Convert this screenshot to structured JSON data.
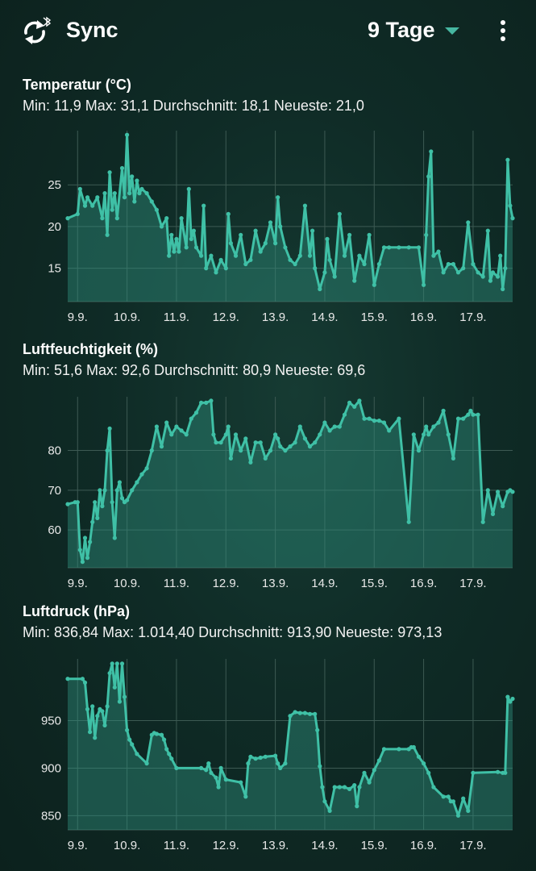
{
  "appbar": {
    "title": "Sync",
    "range": "9 Tage",
    "icons": {
      "sync": "sync-bluetooth-icon",
      "menu": "more-vert-icon",
      "dropdown": "caret-down-icon"
    }
  },
  "colors": {
    "line": "#3fc0a6",
    "fill": "#2f8f7c",
    "grid": "#3d5a53",
    "background": "#0f2b26"
  },
  "sections": [
    {
      "title": "Temperatur (°C)",
      "stats": "Min: 11,9 Max: 31,1 Durchschnitt: 18,1 Neueste: 21,0"
    },
    {
      "title": "Luftfeuchtigkeit (%)",
      "stats": "Min: 51,6 Max: 92,6 Durchschnitt: 80,9 Neueste: 69,6"
    },
    {
      "title": "Luftdruck (hPa)",
      "stats": "Min: 836,84 Max: 1.014,40 Durchschnitt: 913,90 Neueste: 973,13"
    }
  ],
  "chart_data": [
    {
      "type": "area",
      "title": "Temperatur (°C)",
      "x_categories": [
        "9.9.",
        "10.9.",
        "11.9.",
        "12.9.",
        "13.9.",
        "14.9.",
        "15.9.",
        "16.9.",
        "17.9."
      ],
      "x_range": [
        8.8,
        17.8
      ],
      "ylim": [
        11,
        31.5
      ],
      "yticks": [
        15,
        20,
        25
      ],
      "grid": true,
      "x": [
        8.8,
        9.0,
        9.05,
        9.15,
        9.2,
        9.3,
        9.4,
        9.5,
        9.55,
        9.6,
        9.65,
        9.7,
        9.75,
        9.8,
        9.9,
        9.95,
        10.0,
        10.05,
        10.1,
        10.15,
        10.2,
        10.25,
        10.3,
        10.4,
        10.5,
        10.6,
        10.7,
        10.8,
        10.85,
        10.9,
        10.95,
        11.0,
        11.05,
        11.1,
        11.2,
        11.25,
        11.3,
        11.35,
        11.4,
        11.5,
        11.55,
        11.6,
        11.7,
        11.8,
        11.9,
        12.0,
        12.05,
        12.1,
        12.2,
        12.3,
        12.4,
        12.5,
        12.6,
        12.7,
        12.8,
        12.9,
        13.0,
        13.05,
        13.1,
        13.2,
        13.3,
        13.4,
        13.5,
        13.6,
        13.7,
        13.75,
        13.8,
        13.9,
        14.0,
        14.05,
        14.1,
        14.2,
        14.3,
        14.4,
        14.5,
        14.6,
        14.7,
        14.8,
        14.9,
        15.0,
        15.1,
        15.2,
        15.3,
        15.5,
        15.7,
        15.9,
        16.0,
        16.05,
        16.1,
        16.15,
        16.2,
        16.3,
        16.4,
        16.5,
        16.6,
        16.7,
        16.8,
        16.9,
        17.0,
        17.1,
        17.2,
        17.3,
        17.35,
        17.4,
        17.5,
        17.55,
        17.6,
        17.65,
        17.7,
        17.75,
        17.8
      ],
      "values": [
        21.0,
        21.5,
        24.5,
        22.5,
        23.5,
        22.5,
        23.5,
        21.0,
        24.0,
        19.0,
        26.5,
        22.0,
        24.0,
        21.0,
        27.0,
        23.5,
        31.0,
        24.0,
        26.0,
        23.0,
        25.5,
        24.0,
        24.5,
        24.0,
        23.0,
        22.0,
        20.0,
        21.0,
        16.5,
        19.0,
        17.0,
        18.5,
        17.0,
        21.0,
        17.5,
        24.5,
        18.5,
        19.5,
        17.5,
        16.5,
        22.5,
        15.0,
        16.5,
        14.5,
        16.0,
        15.0,
        21.5,
        18.0,
        16.5,
        19.0,
        15.5,
        16.0,
        19.5,
        17.0,
        18.0,
        20.5,
        18.0,
        23.5,
        20.0,
        17.5,
        16.0,
        15.5,
        16.5,
        22.5,
        16.5,
        19.5,
        15.0,
        12.5,
        14.5,
        18.5,
        16.0,
        14.0,
        21.5,
        16.5,
        19.0,
        13.5,
        16.5,
        15.5,
        19.0,
        13.0,
        15.5,
        17.5,
        17.5,
        17.5,
        17.5,
        17.5,
        13.0,
        19.0,
        26.0,
        29.0,
        16.5,
        17.0,
        14.5,
        15.5,
        15.5,
        14.5,
        15.0,
        20.5,
        15.5,
        14.5,
        14.0,
        19.5,
        13.5,
        14.5,
        14.0,
        16.5,
        12.5,
        15.0,
        28.0,
        22.5,
        21.0
      ]
    },
    {
      "type": "area",
      "title": "Luftfeuchtigkeit (%)",
      "x_categories": [
        "9.9.",
        "10.9.",
        "11.9.",
        "12.9.",
        "13.9.",
        "14.9.",
        "15.9.",
        "16.9.",
        "17.9."
      ],
      "x_range": [
        8.8,
        17.8
      ],
      "ylim": [
        50.5,
        93.5
      ],
      "yticks": [
        60,
        70,
        80
      ],
      "grid": true,
      "x": [
        8.8,
        8.95,
        9.0,
        9.05,
        9.1,
        9.15,
        9.2,
        9.25,
        9.3,
        9.35,
        9.4,
        9.45,
        9.5,
        9.55,
        9.6,
        9.65,
        9.7,
        9.75,
        9.8,
        9.85,
        9.9,
        9.95,
        10.0,
        10.1,
        10.2,
        10.3,
        10.4,
        10.5,
        10.6,
        10.7,
        10.8,
        10.9,
        11.0,
        11.1,
        11.2,
        11.3,
        11.4,
        11.5,
        11.6,
        11.7,
        11.75,
        11.8,
        11.9,
        12.0,
        12.05,
        12.1,
        12.2,
        12.3,
        12.4,
        12.5,
        12.6,
        12.7,
        12.8,
        12.9,
        13.0,
        13.05,
        13.1,
        13.2,
        13.3,
        13.4,
        13.5,
        13.6,
        13.7,
        13.8,
        13.9,
        14.0,
        14.1,
        14.2,
        14.3,
        14.4,
        14.5,
        14.6,
        14.7,
        14.8,
        14.9,
        15.0,
        15.1,
        15.2,
        15.3,
        15.5,
        15.7,
        15.8,
        15.9,
        16.0,
        16.05,
        16.1,
        16.2,
        16.3,
        16.4,
        16.5,
        16.6,
        16.7,
        16.8,
        16.9,
        16.95,
        17.0,
        17.1,
        17.2,
        17.3,
        17.4,
        17.5,
        17.6,
        17.7,
        17.75,
        17.8
      ],
      "values": [
        66.5,
        67.0,
        67.0,
        55.0,
        52.0,
        58.0,
        53.0,
        57.0,
        62.0,
        67.0,
        63.0,
        70.0,
        66.0,
        70.0,
        80.0,
        85.5,
        67.0,
        58.0,
        70.0,
        72.0,
        68.0,
        67.0,
        67.5,
        70.0,
        72.0,
        74.0,
        75.5,
        80.0,
        86.0,
        81.0,
        87.0,
        84.0,
        86.0,
        85.0,
        84.0,
        88.0,
        89.5,
        92.0,
        92.0,
        92.5,
        84.0,
        82.0,
        82.0,
        84.0,
        86.0,
        78.0,
        84.0,
        80.0,
        83.0,
        77.0,
        82.0,
        82.0,
        78.0,
        80.0,
        84.0,
        83.0,
        81.0,
        80.0,
        81.0,
        82.0,
        86.0,
        83.0,
        81.0,
        82.0,
        84.0,
        87.0,
        85.0,
        86.0,
        86.0,
        89.0,
        92.0,
        91.0,
        92.5,
        88.0,
        88.0,
        87.5,
        87.5,
        87.0,
        85.0,
        88.0,
        62.0,
        84.0,
        80.0,
        84.0,
        86.0,
        84.0,
        86.0,
        87.0,
        90.0,
        84.0,
        78.0,
        88.0,
        88.0,
        89.0,
        90.0,
        89.0,
        89.0,
        62.0,
        70.0,
        64.0,
        69.6,
        66.0,
        69.6,
        70.0,
        69.6
      ]
    },
    {
      "type": "area",
      "title": "Luftdruck (hPa)",
      "x_categories": [
        "9.9.",
        "10.9.",
        "11.9.",
        "12.9.",
        "13.9.",
        "14.9.",
        "15.9.",
        "16.9.",
        "17.9."
      ],
      "x_range": [
        8.8,
        17.8
      ],
      "ylim": [
        835,
        1015
      ],
      "yticks": [
        850,
        900,
        950
      ],
      "grid": true,
      "x": [
        8.8,
        9.1,
        9.15,
        9.2,
        9.25,
        9.3,
        9.35,
        9.4,
        9.45,
        9.5,
        9.55,
        9.6,
        9.65,
        9.7,
        9.75,
        9.8,
        9.85,
        9.9,
        9.95,
        10.0,
        10.05,
        10.1,
        10.2,
        10.4,
        10.5,
        10.55,
        10.6,
        10.7,
        10.75,
        10.8,
        10.85,
        10.9,
        11.0,
        11.5,
        11.6,
        11.65,
        11.7,
        11.8,
        11.85,
        11.9,
        12.0,
        12.3,
        12.4,
        12.45,
        12.5,
        12.6,
        12.7,
        12.8,
        13.0,
        13.05,
        13.1,
        13.2,
        13.3,
        13.4,
        13.5,
        13.6,
        13.7,
        13.8,
        13.85,
        13.9,
        13.95,
        14.0,
        14.1,
        14.2,
        14.3,
        14.4,
        14.5,
        14.6,
        14.65,
        14.7,
        14.8,
        14.9,
        15.0,
        15.1,
        15.2,
        15.5,
        15.7,
        15.75,
        15.8,
        15.9,
        16.0,
        16.1,
        16.2,
        16.4,
        16.5,
        16.55,
        16.6,
        16.7,
        16.8,
        16.9,
        17.0,
        17.5,
        17.6,
        17.65,
        17.7,
        17.75,
        17.8
      ],
      "values": [
        994,
        994,
        990,
        962,
        938,
        965,
        932,
        955,
        962,
        960,
        945,
        965,
        1000,
        1010,
        985,
        1010,
        970,
        1010,
        975,
        940,
        930,
        925,
        915,
        905,
        935,
        937,
        936,
        935,
        930,
        920,
        915,
        910,
        900,
        900,
        898,
        905,
        895,
        890,
        880,
        900,
        888,
        885,
        870,
        905,
        912,
        910,
        911,
        912,
        913,
        905,
        900,
        905,
        955,
        959,
        958,
        958,
        957,
        957,
        940,
        902,
        880,
        865,
        855,
        880,
        880,
        880,
        878,
        882,
        860,
        880,
        895,
        885,
        898,
        908,
        920,
        920,
        920,
        922,
        922,
        912,
        905,
        895,
        880,
        870,
        870,
        865,
        865,
        850,
        868,
        855,
        895,
        896,
        895,
        895,
        975,
        970,
        973
      ]
    }
  ]
}
